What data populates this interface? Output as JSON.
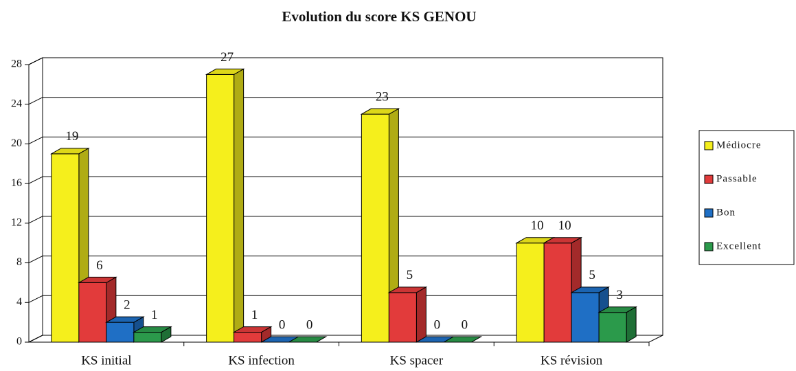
{
  "chart_data": {
    "type": "bar3d",
    "title": "Evolution du score KS GENOU",
    "categories": [
      "KS initial",
      "KS infection",
      "KS spacer",
      "KS révision"
    ],
    "series": [
      {
        "name": "Médiocre",
        "color": "#f5ef1c",
        "values": [
          19,
          27,
          23,
          10
        ]
      },
      {
        "name": "Passable",
        "color": "#e23b3b",
        "values": [
          6,
          1,
          5,
          10
        ]
      },
      {
        "name": "Bon",
        "color": "#1f6fc5",
        "values": [
          2,
          0,
          0,
          5
        ]
      },
      {
        "name": "Excellent",
        "color": "#2b9a4b",
        "values": [
          1,
          0,
          0,
          3
        ]
      }
    ],
    "ylim": [
      0,
      28
    ],
    "yticks": [
      0,
      4,
      8,
      12,
      16,
      20,
      24,
      28
    ],
    "grid": true,
    "legend": "right"
  }
}
